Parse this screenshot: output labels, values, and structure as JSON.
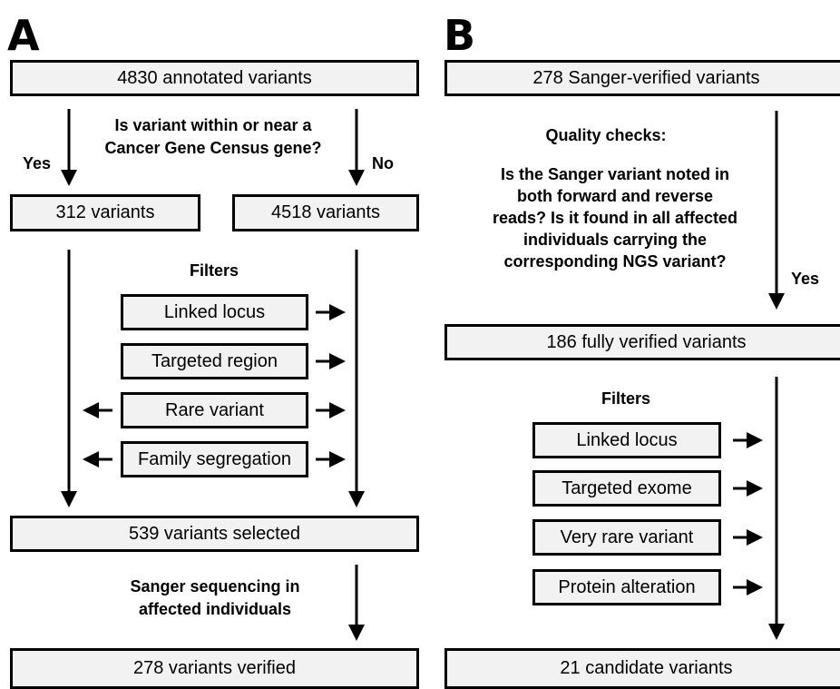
{
  "panel_a": {
    "letter": "A",
    "top_box": "4830 annotated variants",
    "question_line1": "Is variant within or near a",
    "question_line2": "Cancer Gene Census gene?",
    "yes_label": "Yes",
    "no_label": "No",
    "left_box": "312 variants",
    "right_box": "4518 variants",
    "filters_heading": "Filters",
    "filters": [
      "Linked locus",
      "Targeted region",
      "Rare variant",
      "Family segregation"
    ],
    "selected_box": "539 variants selected",
    "sanger_line1": "Sanger sequencing in",
    "sanger_line2": "affected individuals",
    "bottom_box": "278 variants verified"
  },
  "panel_b": {
    "letter": "B",
    "top_box": "278 Sanger-verified variants",
    "quality_heading": "Quality checks:",
    "quality_lines": [
      "Is the Sanger variant noted in",
      "both forward and reverse",
      "reads? Is it found in all affected",
      "individuals carrying the",
      "corresponding NGS variant?"
    ],
    "yes_label": "Yes",
    "verified_box": "186 fully verified variants",
    "filters_heading": "Filters",
    "filters": [
      "Linked locus",
      "Targeted exome",
      "Very rare variant",
      "Protein alteration"
    ],
    "bottom_box": "21 candidate variants"
  }
}
